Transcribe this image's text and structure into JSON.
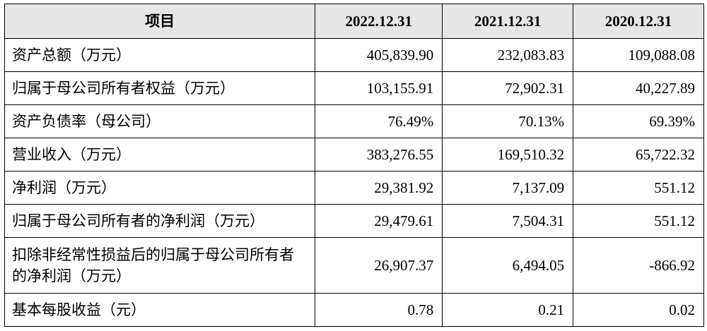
{
  "table": {
    "header": [
      "项目",
      "2022.12.31",
      "2021.12.31",
      "2020.12.31"
    ],
    "rows": [
      [
        "资产总额（万元）",
        "405,839.90",
        "232,083.83",
        "109,088.08"
      ],
      [
        "归属于母公司所有者权益（万元）",
        "103,155.91",
        "72,902.31",
        "40,227.89"
      ],
      [
        "资产负债率（母公司）",
        "76.49%",
        "70.13%",
        "69.39%"
      ],
      [
        "营业收入（万元）",
        "383,276.55",
        "169,510.32",
        "65,722.32"
      ],
      [
        "净利润（万元）",
        "29,381.92",
        "7,137.09",
        "551.12"
      ],
      [
        "归属于母公司所有者的净利润（万元）",
        "29,479.61",
        "7,504.31",
        "551.12"
      ],
      [
        "扣除非经常性损益后的归属于母公司所有者的净利润（万元）",
        "26,907.37",
        "6,494.05",
        "-866.92"
      ],
      [
        "基本每股收益（元）",
        "0.78",
        "0.21",
        "0.02"
      ]
    ]
  }
}
